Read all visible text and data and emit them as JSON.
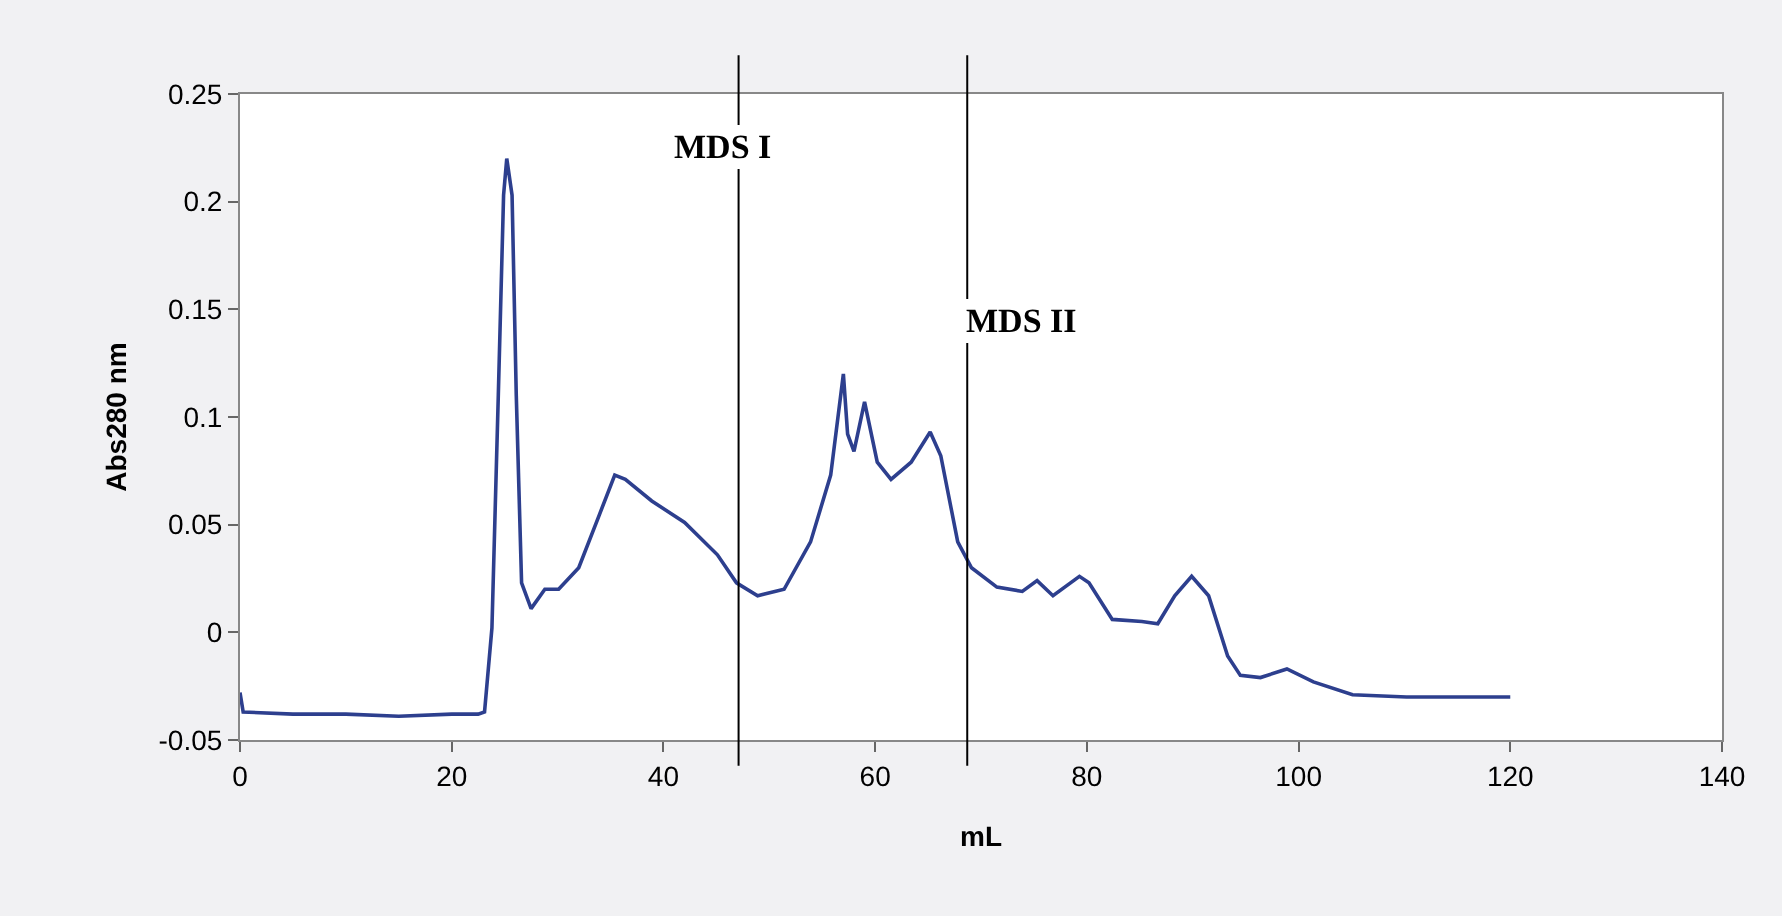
{
  "chart_data": {
    "type": "line",
    "xlabel": "mL",
    "ylabel": "Abs280 nm",
    "x": [
      0,
      0.3,
      5,
      10,
      15,
      20,
      22.5,
      23.1,
      23.8,
      24.4,
      24.9,
      25.2,
      25.7,
      26.1,
      26.6,
      27.5,
      28.8,
      30.1,
      32.0,
      33.9,
      35.4,
      36.4,
      38.9,
      42.0,
      45.1,
      46.9,
      48.9,
      51.4,
      53.9,
      55.8,
      57.0,
      57.4,
      58.0,
      59.0,
      60.2,
      61.5,
      63.4,
      65.2,
      66.2,
      67.8,
      69.1,
      71.5,
      73.9,
      75.3,
      76.8,
      79.3,
      80.2,
      82.4,
      85.2,
      86.7,
      88.3,
      89.9,
      91.5,
      93.3,
      94.5,
      96.4,
      98.9,
      101.4,
      105.1,
      110.2,
      115,
      120
    ],
    "series": [
      {
        "color": "#2d3f8e",
        "values": [
          -0.028,
          -0.037,
          -0.038,
          -0.038,
          -0.039,
          -0.038,
          -0.038,
          -0.037,
          0.002,
          0.11,
          0.203,
          0.22,
          0.203,
          0.11,
          0.023,
          0.011,
          0.02,
          0.02,
          0.03,
          0.054,
          0.073,
          0.071,
          0.061,
          0.051,
          0.036,
          0.023,
          0.017,
          0.02,
          0.042,
          0.073,
          0.12,
          0.092,
          0.084,
          0.107,
          0.079,
          0.071,
          0.079,
          0.093,
          0.082,
          0.042,
          0.03,
          0.021,
          0.019,
          0.024,
          0.017,
          0.026,
          0.023,
          0.006,
          0.005,
          0.004,
          0.017,
          0.026,
          0.017,
          -0.011,
          -0.02,
          -0.021,
          -0.017,
          -0.023,
          -0.029,
          -0.03,
          -0.03,
          -0.03
        ]
      }
    ],
    "xlim": [
      0,
      140
    ],
    "xticks": [
      0,
      20,
      40,
      60,
      80,
      100,
      120,
      140
    ],
    "ylim": [
      -0.05,
      0.25
    ],
    "yticks": [
      -0.05,
      0,
      0.05,
      0.1,
      0.15,
      0.2,
      0.25
    ],
    "ref_lines": [
      {
        "axis": "x",
        "value": 47.1,
        "label": "MDS I",
        "color": "#000000"
      },
      {
        "axis": "x",
        "value": 68.7,
        "label": "MDS II",
        "color": "#000000"
      }
    ],
    "legend": false
  }
}
